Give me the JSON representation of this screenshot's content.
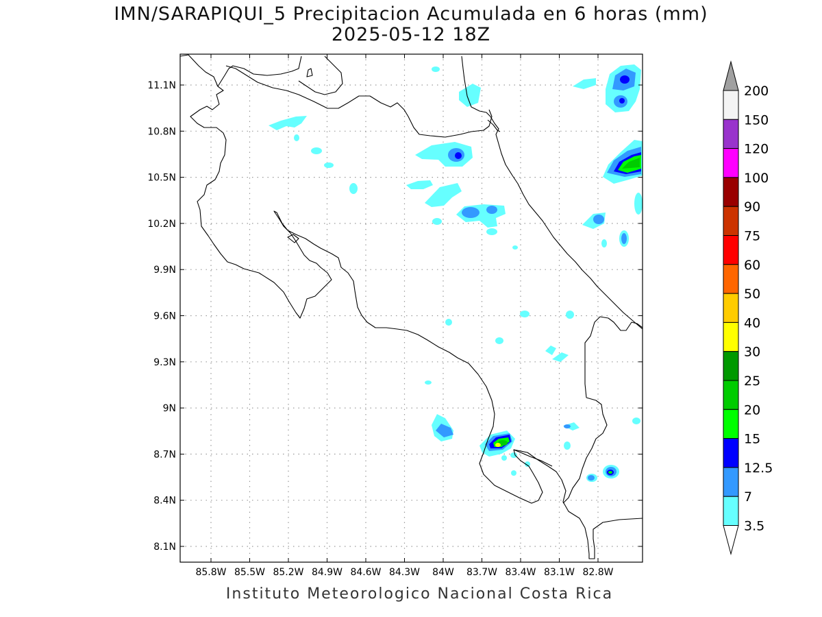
{
  "title": "IMN/SARAPIQUI_5 Precipitacion Acumulada en 6 horas (mm)",
  "subtitle": "2025-05-12 18Z",
  "credit": "Instituto Meteorologico Nacional Costa Rica",
  "map": {
    "lon_range": [
      -86.05,
      -83.05
    ],
    "lat_range": [
      8.0,
      11.3
    ],
    "x_ticks": [
      "85.8W",
      "85.5W",
      "85.2W",
      "84.9W",
      "84.6W",
      "84.3W",
      "84W",
      "83.7W",
      "83.4W",
      "83.1W",
      "82.8W"
    ],
    "y_ticks": [
      "11.1N",
      "10.8N",
      "10.5N",
      "10.2N",
      "9.9N",
      "9.6N",
      "9.3N",
      "9N",
      "8.7N",
      "8.4N",
      "8.1N"
    ],
    "grid": true
  },
  "legend": {
    "levels": [
      "3.5",
      "7",
      "12.5",
      "15",
      "20",
      "25",
      "30",
      "40",
      "50",
      "60",
      "75",
      "90",
      "100",
      "120",
      "150",
      "200"
    ],
    "colors": [
      "#66ffff",
      "#3399ff",
      "#0000ff",
      "#00ff00",
      "#00cc00",
      "#009900",
      "#ffff00",
      "#ffcc00",
      "#ff6600",
      "#ff0000",
      "#cc3300",
      "#990000",
      "#ff00ff",
      "#9933cc",
      "#f4f4f4"
    ],
    "top_arrow_color": "#a0a0a0",
    "bottom_arrow_color": "#ffffff"
  }
}
